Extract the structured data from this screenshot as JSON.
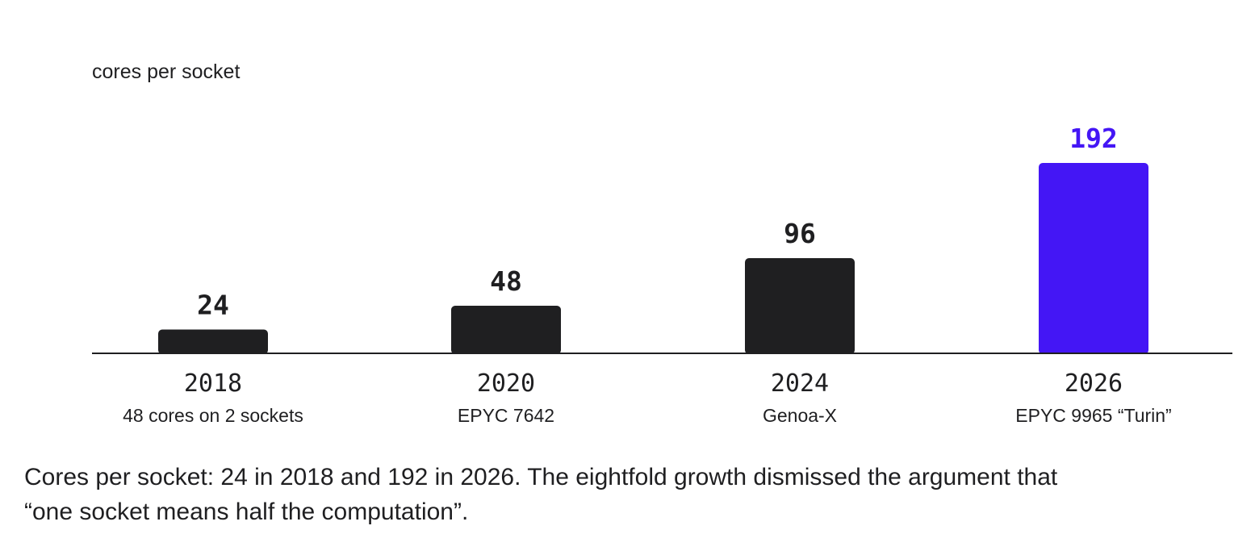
{
  "chart_data": {
    "type": "bar",
    "ylabel": "cores per socket",
    "xlabel": "",
    "categories": [
      "2018",
      "2020",
      "2024",
      "2026"
    ],
    "sublabels": [
      "48 cores on 2 sockets",
      "EPYC 7642",
      "Genoa-X",
      "EPYC 9965 “Turin”"
    ],
    "values": [
      24,
      48,
      96,
      192
    ],
    "value_labels": [
      "24",
      "48",
      "96",
      "192"
    ],
    "ylim": [
      0,
      192
    ],
    "grid": false,
    "highlight_index": 3,
    "colors": {
      "bar": "#1f1f21",
      "highlight": "#4416f5",
      "axis": "#1f1f21",
      "text": "#1f1f21"
    }
  },
  "caption": {
    "line1": "Cores per socket: 24 in 2018 and 192 in 2026. The eightfold growth dismissed the argument that",
    "line2": "“one socket means half the computation”."
  }
}
